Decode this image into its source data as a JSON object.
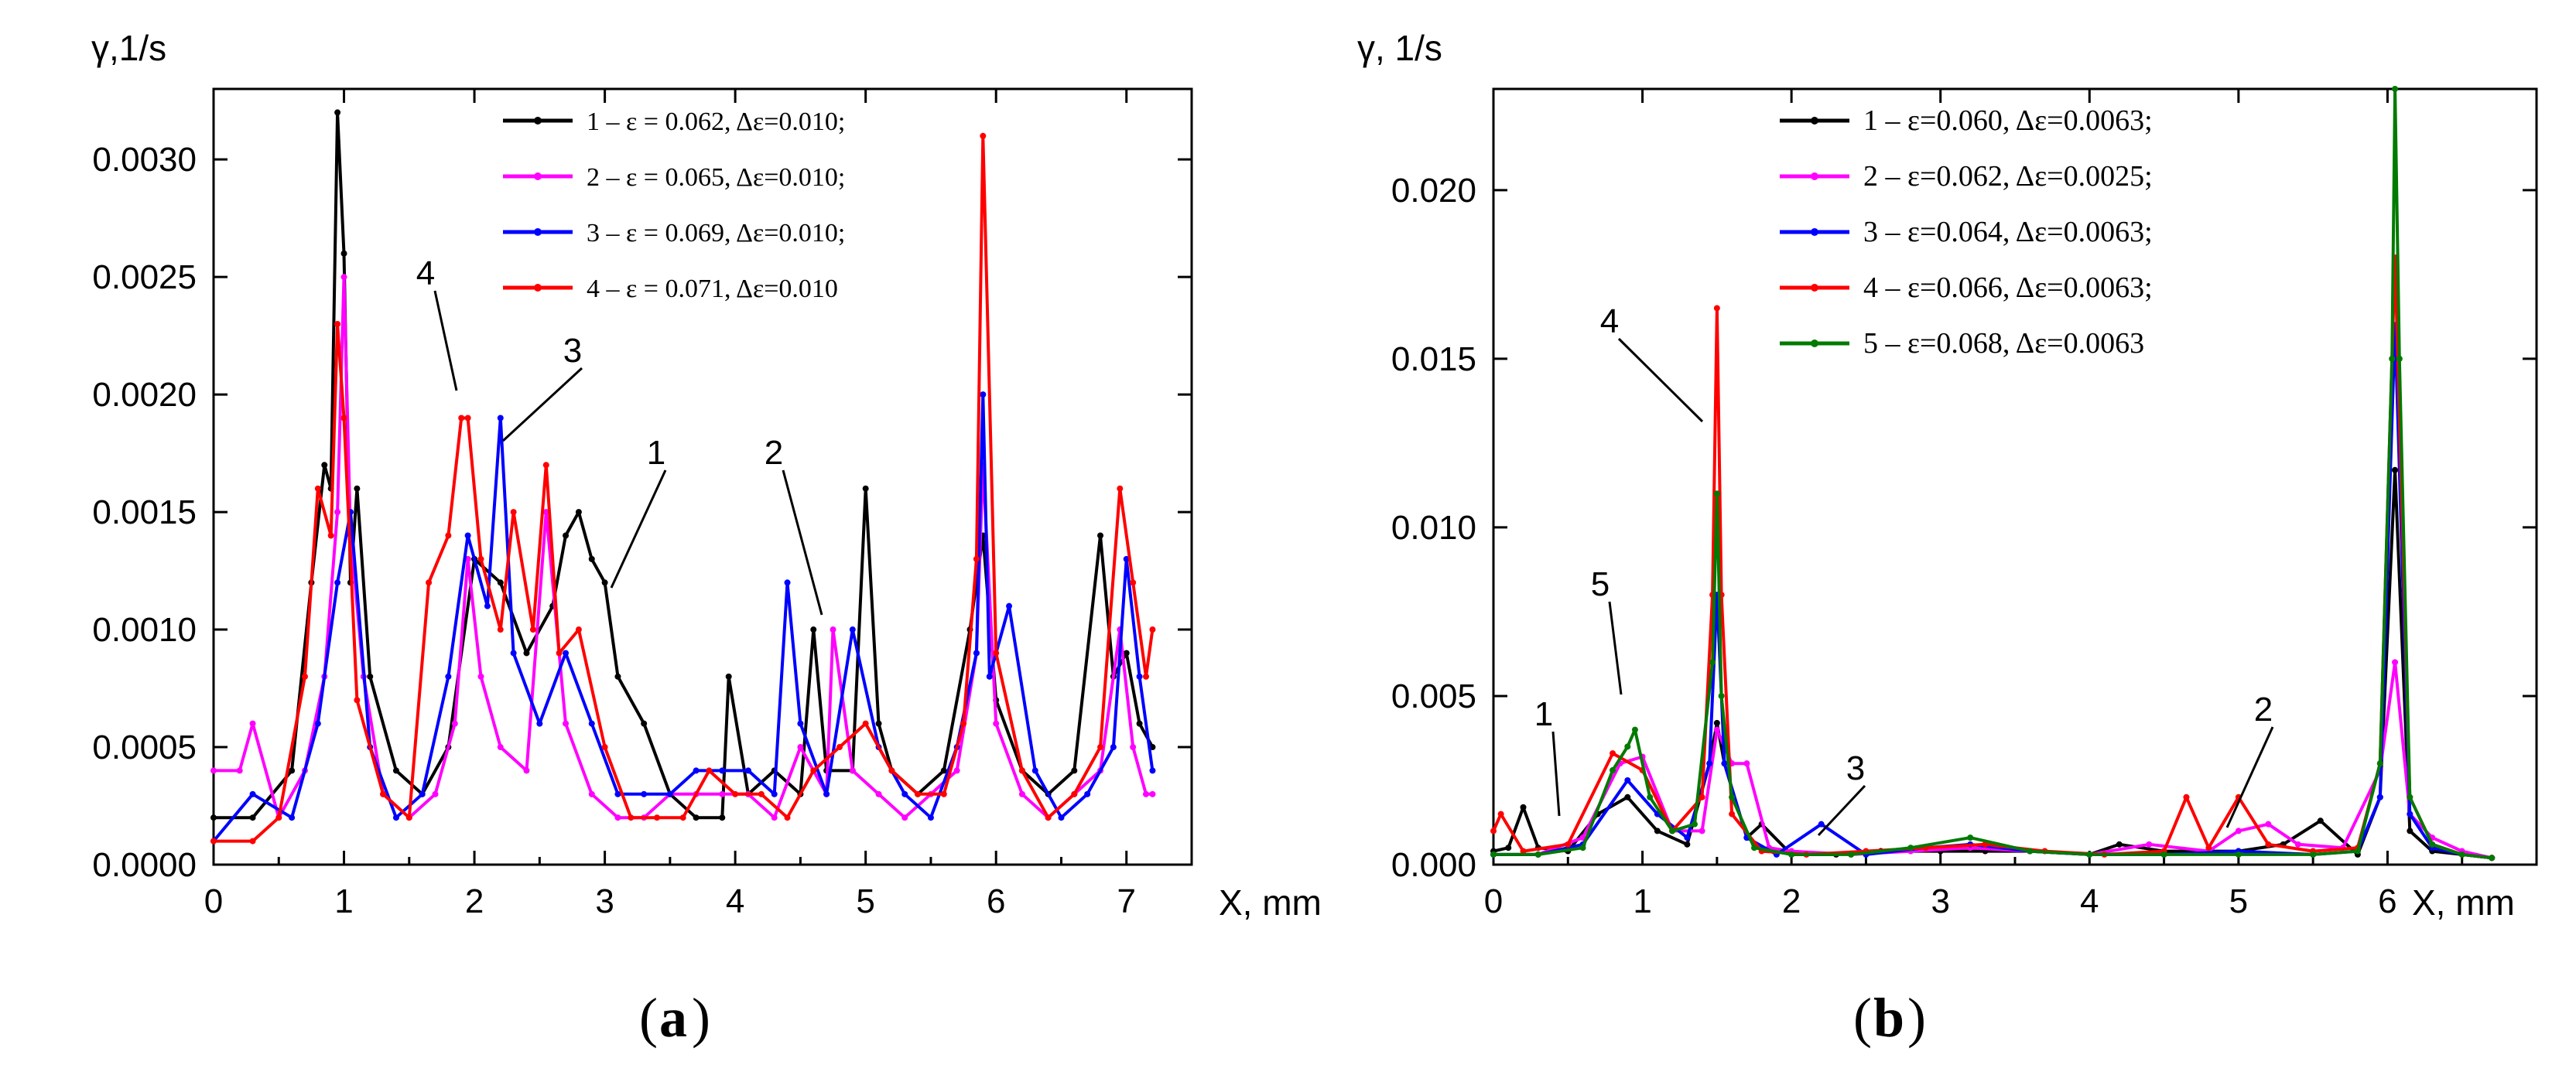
{
  "chart_data": [
    {
      "type": "line",
      "panel_label": "a",
      "ylabel": "γ,1/s",
      "xlabel": "X, mm",
      "xlim": [
        0,
        7.5
      ],
      "ylim": [
        0,
        0.0033
      ],
      "xticks": [
        {
          "value": 0,
          "label": "0"
        },
        {
          "value": 1,
          "label": "1"
        },
        {
          "value": 2,
          "label": "2"
        },
        {
          "value": 3,
          "label": "3"
        },
        {
          "value": 4,
          "label": "4"
        },
        {
          "value": 5,
          "label": "5"
        },
        {
          "value": 6,
          "label": "6"
        },
        {
          "value": 7,
          "label": "7"
        }
      ],
      "yticks": [
        {
          "value": 0,
          "label": "0.0000"
        },
        {
          "value": 0.0005,
          "label": "0.0005"
        },
        {
          "value": 0.001,
          "label": "0.0010"
        },
        {
          "value": 0.0015,
          "label": "0.0015"
        },
        {
          "value": 0.002,
          "label": "0.0020"
        },
        {
          "value": 0.0025,
          "label": "0.0025"
        },
        {
          "value": 0.003,
          "label": "0.0030"
        }
      ],
      "legend_position": "top-right",
      "series": [
        {
          "name": "1 – ε = 0.062, Δε=0.010;",
          "color": "#000000",
          "x": [
            0,
            0.3,
            0.6,
            0.75,
            0.85,
            0.9,
            0.95,
            1.0,
            1.05,
            1.1,
            1.2,
            1.4,
            1.6,
            1.8,
            2.0,
            2.2,
            2.4,
            2.6,
            2.7,
            2.8,
            2.9,
            3.0,
            3.1,
            3.3,
            3.5,
            3.7,
            3.9,
            3.95,
            4.1,
            4.3,
            4.5,
            4.6,
            4.7,
            4.9,
            5.0,
            5.1,
            5.2,
            5.4,
            5.6,
            5.8,
            5.9,
            6.0,
            6.2,
            6.4,
            6.6,
            6.8,
            6.9,
            7.0,
            7.1,
            7.2
          ],
          "y": [
            0.0002,
            0.0002,
            0.0004,
            0.0012,
            0.0017,
            0.0016,
            0.0032,
            0.0026,
            0.0012,
            0.0016,
            0.0008,
            0.0004,
            0.0003,
            0.0005,
            0.0013,
            0.0012,
            0.0009,
            0.0011,
            0.0014,
            0.0015,
            0.0013,
            0.0012,
            0.0008,
            0.0006,
            0.0003,
            0.0002,
            0.0002,
            0.0008,
            0.0003,
            0.0004,
            0.0003,
            0.001,
            0.0004,
            0.0004,
            0.0016,
            0.0006,
            0.0004,
            0.0003,
            0.0004,
            0.001,
            0.0014,
            0.0007,
            0.0004,
            0.0003,
            0.0004,
            0.0014,
            0.0008,
            0.0009,
            0.0006,
            0.0005
          ]
        },
        {
          "name": "2 – ε = 0.065, Δε=0.010;",
          "color": "#ff00ff",
          "x": [
            0,
            0.2,
            0.3,
            0.5,
            0.7,
            0.85,
            0.95,
            1.0,
            1.05,
            1.15,
            1.3,
            1.5,
            1.7,
            1.85,
            1.95,
            2.05,
            2.2,
            2.4,
            2.55,
            2.7,
            2.9,
            3.1,
            3.3,
            3.5,
            3.7,
            3.9,
            4.1,
            4.3,
            4.5,
            4.7,
            4.75,
            4.9,
            5.1,
            5.3,
            5.5,
            5.7,
            5.85,
            5.9,
            6.0,
            6.2,
            6.4,
            6.6,
            6.8,
            6.95,
            7.05,
            7.15,
            7.2
          ],
          "y": [
            0.0004,
            0.0004,
            0.0006,
            0.0002,
            0.0004,
            0.0008,
            0.0015,
            0.0025,
            0.0014,
            0.0008,
            0.0003,
            0.0002,
            0.0003,
            0.0006,
            0.0013,
            0.0008,
            0.0005,
            0.0004,
            0.0015,
            0.0006,
            0.0003,
            0.0002,
            0.0002,
            0.0003,
            0.0003,
            0.0003,
            0.0003,
            0.0002,
            0.0005,
            0.0003,
            0.001,
            0.0004,
            0.0003,
            0.0002,
            0.0003,
            0.0004,
            0.0009,
            0.0017,
            0.0006,
            0.0003,
            0.0002,
            0.0003,
            0.0004,
            0.001,
            0.0005,
            0.0003,
            0.0003
          ]
        },
        {
          "name": "3 – ε = 0.069, Δε=0.010;",
          "color": "#0000ff",
          "x": [
            0,
            0.3,
            0.6,
            0.8,
            0.95,
            1.05,
            1.2,
            1.4,
            1.6,
            1.8,
            1.95,
            2.1,
            2.2,
            2.3,
            2.5,
            2.7,
            2.9,
            3.1,
            3.3,
            3.5,
            3.7,
            3.9,
            4.1,
            4.3,
            4.4,
            4.5,
            4.7,
            4.9,
            5.1,
            5.3,
            5.5,
            5.7,
            5.85,
            5.9,
            5.95,
            6.1,
            6.3,
            6.5,
            6.7,
            6.9,
            7.0,
            7.1,
            7.2
          ],
          "y": [
            0.0001,
            0.0003,
            0.0002,
            0.0006,
            0.0012,
            0.0015,
            0.0005,
            0.0002,
            0.0003,
            0.0008,
            0.0014,
            0.0011,
            0.0019,
            0.0009,
            0.0006,
            0.0009,
            0.0006,
            0.0003,
            0.0003,
            0.0003,
            0.0004,
            0.0004,
            0.0004,
            0.0003,
            0.0012,
            0.0006,
            0.0003,
            0.001,
            0.0005,
            0.0003,
            0.0002,
            0.0005,
            0.0009,
            0.002,
            0.0008,
            0.0011,
            0.0004,
            0.0002,
            0.0003,
            0.0005,
            0.0013,
            0.0008,
            0.0004
          ]
        },
        {
          "name": "4 – ε = 0.071, Δε=0.010",
          "color": "#ff0000",
          "x": [
            0,
            0.3,
            0.5,
            0.7,
            0.8,
            0.9,
            0.95,
            1.0,
            1.1,
            1.3,
            1.5,
            1.65,
            1.8,
            1.9,
            1.95,
            2.05,
            2.2,
            2.3,
            2.45,
            2.55,
            2.65,
            2.8,
            3.0,
            3.2,
            3.4,
            3.6,
            3.8,
            4.0,
            4.2,
            4.4,
            4.6,
            4.8,
            5.0,
            5.2,
            5.4,
            5.6,
            5.75,
            5.85,
            5.9,
            6.0,
            6.2,
            6.4,
            6.6,
            6.8,
            6.95,
            7.05,
            7.15,
            7.2
          ],
          "y": [
            0.0001,
            0.0001,
            0.0002,
            0.0008,
            0.0016,
            0.0014,
            0.0023,
            0.0019,
            0.0007,
            0.0003,
            0.0002,
            0.0012,
            0.0014,
            0.0019,
            0.0019,
            0.0013,
            0.001,
            0.0015,
            0.001,
            0.0017,
            0.0009,
            0.001,
            0.0005,
            0.0002,
            0.0002,
            0.0002,
            0.0004,
            0.0003,
            0.0003,
            0.0002,
            0.0004,
            0.0005,
            0.0006,
            0.0004,
            0.0003,
            0.0003,
            0.0006,
            0.0013,
            0.0031,
            0.0009,
            0.0004,
            0.0002,
            0.0003,
            0.0005,
            0.0016,
            0.0012,
            0.0008,
            0.001
          ]
        }
      ],
      "annotations": [
        {
          "text": "4",
          "x": 1.95,
          "y": 0.0019
        },
        {
          "text": "3",
          "x": 2.2,
          "y": 0.0018
        },
        {
          "text": "1",
          "x": 2.98,
          "y": 0.0012
        },
        {
          "text": "2",
          "x": 4.75,
          "y": 0.001
        }
      ]
    },
    {
      "type": "line",
      "panel_label": "b",
      "ylabel": "γ, 1/s",
      "xlabel": "X, mm",
      "xlim": [
        0,
        7
      ],
      "ylim": [
        0,
        0.023
      ],
      "xticks": [
        {
          "value": 0,
          "label": "0"
        },
        {
          "value": 1,
          "label": "1"
        },
        {
          "value": 2,
          "label": "2"
        },
        {
          "value": 3,
          "label": "3"
        },
        {
          "value": 4,
          "label": "4"
        },
        {
          "value": 5,
          "label": "5"
        },
        {
          "value": 6,
          "label": "6"
        }
      ],
      "yticks": [
        {
          "value": 0,
          "label": "0.000"
        },
        {
          "value": 0.005,
          "label": "0.005"
        },
        {
          "value": 0.01,
          "label": "0.010"
        },
        {
          "value": 0.015,
          "label": "0.015"
        },
        {
          "value": 0.02,
          "label": "0.020"
        }
      ],
      "legend_position": "top-right",
      "series": [
        {
          "name": "1 – ε=0.060, Δε=0.0063;",
          "color": "#000000",
          "x": [
            0,
            0.1,
            0.2,
            0.3,
            0.5,
            0.7,
            0.9,
            1.1,
            1.3,
            1.45,
            1.5,
            1.55,
            1.7,
            1.8,
            2.0,
            2.3,
            2.6,
            3.0,
            3.3,
            3.6,
            4.0,
            4.2,
            4.5,
            5.0,
            5.3,
            5.55,
            5.8,
            5.95,
            6.05,
            6.15,
            6.3,
            6.5,
            6.7
          ],
          "y": [
            0.0004,
            0.0005,
            0.0017,
            0.0005,
            0.0004,
            0.0015,
            0.002,
            0.001,
            0.0006,
            0.003,
            0.0042,
            0.003,
            0.0008,
            0.0012,
            0.0003,
            0.0003,
            0.0004,
            0.0004,
            0.0004,
            0.0004,
            0.0003,
            0.0006,
            0.0004,
            0.0004,
            0.0006,
            0.0013,
            0.0003,
            0.002,
            0.0117,
            0.001,
            0.0004,
            0.0003,
            0.0002
          ]
        },
        {
          "name": "2 – ε=0.062, Δε=0.0025;",
          "color": "#ff00ff",
          "x": [
            0,
            0.3,
            0.6,
            0.85,
            1.0,
            1.2,
            1.4,
            1.5,
            1.6,
            1.7,
            1.85,
            2.0,
            2.4,
            2.8,
            3.2,
            3.6,
            4.0,
            4.4,
            4.8,
            5.0,
            5.2,
            5.4,
            5.7,
            5.95,
            6.05,
            6.15,
            6.3,
            6.5,
            6.7
          ],
          "y": [
            0.0003,
            0.0003,
            0.0008,
            0.003,
            0.0032,
            0.001,
            0.001,
            0.004,
            0.003,
            0.003,
            0.0005,
            0.0004,
            0.0003,
            0.0004,
            0.0005,
            0.0004,
            0.0003,
            0.0006,
            0.0004,
            0.001,
            0.0012,
            0.0006,
            0.0005,
            0.0028,
            0.006,
            0.0015,
            0.0008,
            0.0004,
            0.0002
          ]
        },
        {
          "name": "3 – ε=0.064, Δε=0.0063;",
          "color": "#0000ff",
          "x": [
            0,
            0.3,
            0.6,
            0.9,
            1.1,
            1.3,
            1.45,
            1.5,
            1.55,
            1.7,
            1.9,
            2.2,
            2.5,
            2.9,
            3.2,
            3.6,
            4.0,
            4.5,
            5.0,
            5.5,
            5.8,
            5.95,
            6.05,
            6.15,
            6.3,
            6.5,
            6.7
          ],
          "y": [
            0.0003,
            0.0003,
            0.0006,
            0.0025,
            0.0015,
            0.0008,
            0.003,
            0.008,
            0.003,
            0.0008,
            0.0003,
            0.0012,
            0.0003,
            0.0005,
            0.0006,
            0.0004,
            0.0003,
            0.0003,
            0.0004,
            0.0003,
            0.0004,
            0.002,
            0.016,
            0.0015,
            0.0005,
            0.0003,
            0.0002
          ]
        },
        {
          "name": "4 – ε=0.066, Δε=0.0063;",
          "color": "#ff0000",
          "x": [
            0,
            0.05,
            0.2,
            0.5,
            0.8,
            1.0,
            1.2,
            1.4,
            1.47,
            1.5,
            1.53,
            1.6,
            1.8,
            2.1,
            2.5,
            2.9,
            3.3,
            3.7,
            4.1,
            4.5,
            4.65,
            4.8,
            5.0,
            5.2,
            5.5,
            5.8,
            5.95,
            6.05,
            6.15,
            6.3,
            6.5,
            6.7
          ],
          "y": [
            0.001,
            0.0015,
            0.0004,
            0.0006,
            0.0033,
            0.0028,
            0.001,
            0.002,
            0.008,
            0.0165,
            0.008,
            0.0015,
            0.0004,
            0.0003,
            0.0004,
            0.0005,
            0.0006,
            0.0004,
            0.0003,
            0.0004,
            0.002,
            0.0005,
            0.002,
            0.0006,
            0.0004,
            0.0005,
            0.003,
            0.018,
            0.002,
            0.0006,
            0.0003,
            0.0002
          ]
        },
        {
          "name": "5 – ε=0.068, Δε=0.0063",
          "color": "#007a00",
          "x": [
            0,
            0.3,
            0.6,
            0.8,
            0.9,
            0.95,
            1.05,
            1.2,
            1.35,
            1.47,
            1.5,
            1.53,
            1.6,
            1.75,
            2.0,
            2.4,
            2.8,
            3.2,
            3.6,
            4.0,
            4.5,
            5.0,
            5.5,
            5.8,
            5.95,
            6.03,
            6.05,
            6.08,
            6.15,
            6.3,
            6.5,
            6.7
          ],
          "y": [
            0.0003,
            0.0003,
            0.0005,
            0.0028,
            0.0035,
            0.004,
            0.002,
            0.001,
            0.0012,
            0.006,
            0.011,
            0.005,
            0.002,
            0.0005,
            0.0003,
            0.0003,
            0.0005,
            0.0008,
            0.0004,
            0.0003,
            0.0003,
            0.0003,
            0.0003,
            0.0004,
            0.003,
            0.015,
            0.023,
            0.015,
            0.002,
            0.0006,
            0.0003,
            0.0002
          ]
        }
      ],
      "annotations": [
        {
          "text": "1",
          "x": 0.18,
          "y": 0.0017
        },
        {
          "text": "5",
          "x": 0.9,
          "y": 0.004
        },
        {
          "text": "4",
          "x": 1.5,
          "y": 0.0165
        },
        {
          "text": "3",
          "x": 2.2,
          "y": 0.0012
        },
        {
          "text": "2",
          "x": 5.25,
          "y": 0.0012
        }
      ]
    }
  ]
}
